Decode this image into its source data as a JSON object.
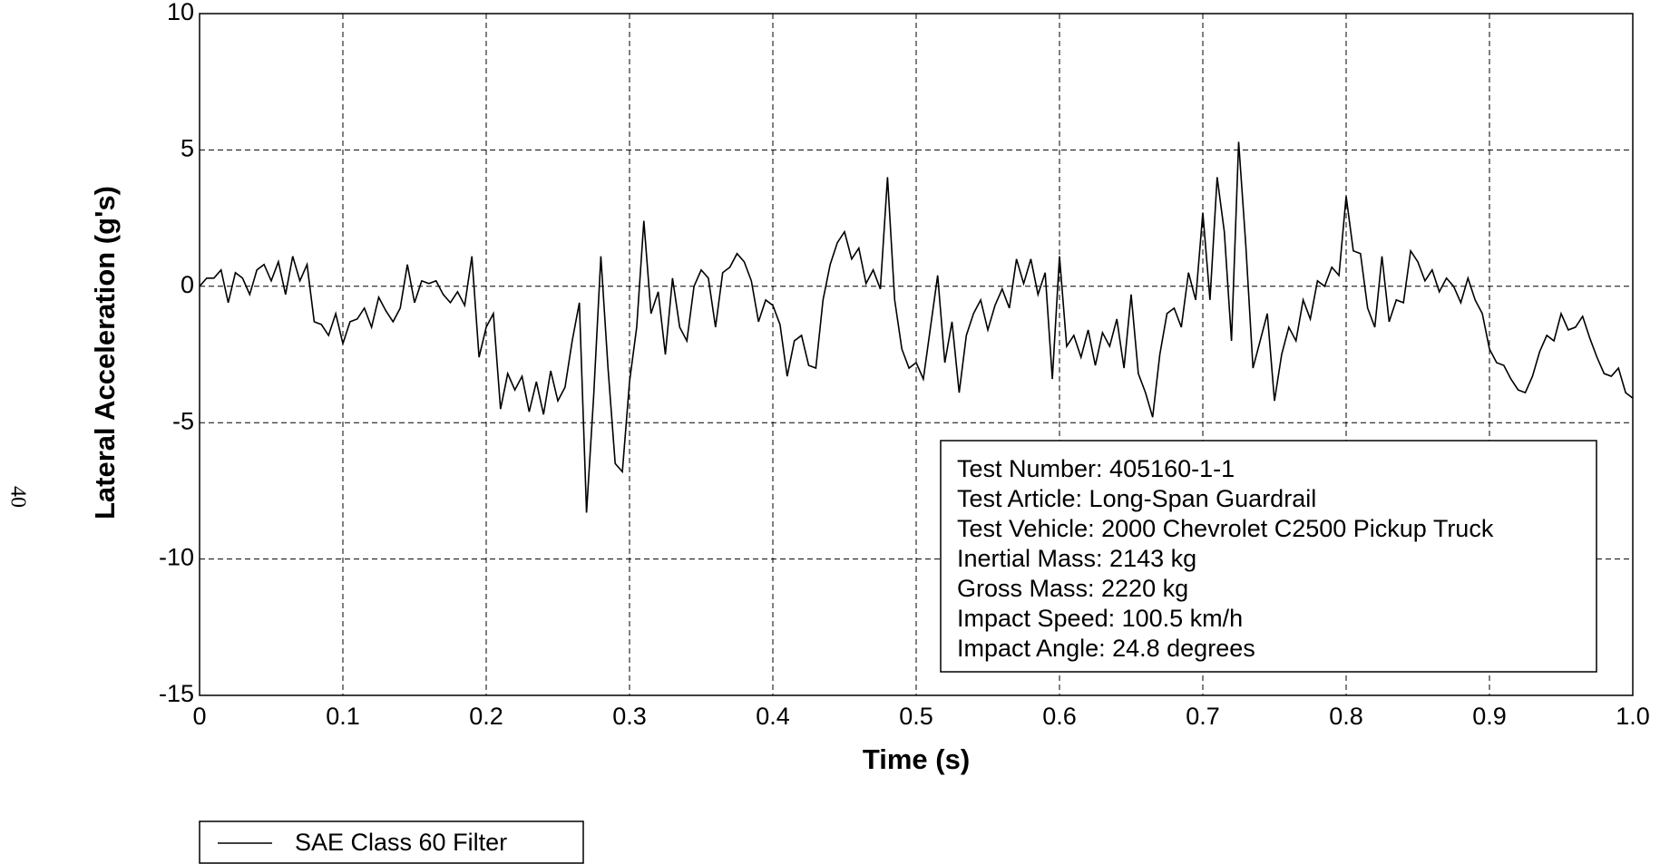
{
  "page_number": "40",
  "chart_data": {
    "type": "line",
    "x_label": "Time (s)",
    "y_label": "Lateral Acceleration (g's)",
    "xlim": [
      0,
      1
    ],
    "ylim": [
      -15,
      10
    ],
    "xticks": [
      0,
      0.1,
      0.2,
      0.3,
      0.4,
      0.5,
      0.6,
      0.7,
      0.8,
      0.9,
      {
        "value": 1,
        "label": "1.0"
      }
    ],
    "yticks": [
      -15,
      -10,
      -5,
      0,
      5,
      10
    ],
    "grid": true,
    "annotations": [
      "Test Number: 405160-1-1",
      "Test Article: Long-Span Guardrail",
      "Test Vehicle: 2000 Chevrolet C2500 Pickup Truck",
      "Inertial Mass: 2143 kg",
      "Gross Mass: 2220 kg",
      "Impact Speed: 100.5 km/h",
      "Impact Angle: 24.8 degrees"
    ],
    "x": [
      0,
      0.005,
      0.01,
      0.015,
      0.02,
      0.025,
      0.03,
      0.035,
      0.04,
      0.045,
      0.05,
      0.055,
      0.06,
      0.065,
      0.07,
      0.075,
      0.08,
      0.085,
      0.09,
      0.095,
      0.1,
      0.105,
      0.11,
      0.115,
      0.12,
      0.125,
      0.13,
      0.135,
      0.14,
      0.145,
      0.15,
      0.155,
      0.16,
      0.165,
      0.17,
      0.175,
      0.18,
      0.185,
      0.19,
      0.195,
      0.2,
      0.205,
      0.21,
      0.215,
      0.22,
      0.225,
      0.23,
      0.235,
      0.24,
      0.245,
      0.25,
      0.255,
      0.26,
      0.265,
      0.27,
      0.275,
      0.28,
      0.285,
      0.29,
      0.295,
      0.3,
      0.305,
      0.31,
      0.315,
      0.32,
      0.325,
      0.33,
      0.335,
      0.34,
      0.345,
      0.35,
      0.355,
      0.36,
      0.365,
      0.37,
      0.375,
      0.38,
      0.385,
      0.39,
      0.395,
      0.4,
      0.405,
      0.41,
      0.415,
      0.42,
      0.425,
      0.43,
      0.435,
      0.44,
      0.445,
      0.45,
      0.455,
      0.46,
      0.465,
      0.47,
      0.475,
      0.48,
      0.485,
      0.49,
      0.495,
      0.5,
      0.505,
      0.51,
      0.515,
      0.52,
      0.525,
      0.53,
      0.535,
      0.54,
      0.545,
      0.55,
      0.555,
      0.56,
      0.565,
      0.57,
      0.575,
      0.58,
      0.585,
      0.59,
      0.595,
      0.6,
      0.605,
      0.61,
      0.615,
      0.62,
      0.625,
      0.63,
      0.635,
      0.64,
      0.645,
      0.65,
      0.655,
      0.66,
      0.665,
      0.67,
      0.675,
      0.68,
      0.685,
      0.69,
      0.695,
      0.7,
      0.705,
      0.71,
      0.715,
      0.72,
      0.725,
      0.73,
      0.735,
      0.74,
      0.745,
      0.75,
      0.755,
      0.76,
      0.765,
      0.77,
      0.775,
      0.78,
      0.785,
      0.79,
      0.795,
      0.8,
      0.805,
      0.81,
      0.815,
      0.82,
      0.825,
      0.83,
      0.835,
      0.84,
      0.845,
      0.85,
      0.855,
      0.86,
      0.865,
      0.87,
      0.875,
      0.88,
      0.885,
      0.89,
      0.895,
      0.9,
      0.905,
      0.91,
      0.915,
      0.92,
      0.925,
      0.93,
      0.935,
      0.94,
      0.945,
      0.95,
      0.955,
      0.96,
      0.965,
      0.97,
      0.975,
      0.98,
      0.985,
      0.99,
      0.995,
      1
    ],
    "series": [
      {
        "name": "SAE Class 60 Filter",
        "color": "#000000",
        "values": [
          0,
          0.3,
          0.3,
          0.6,
          -0.6,
          0.5,
          0.3,
          -0.3,
          0.6,
          0.8,
          0.2,
          0.9,
          -0.3,
          1.1,
          0.2,
          0.8,
          -1.3,
          -1.4,
          -1.8,
          -1.0,
          -2.1,
          -1.3,
          -1.2,
          -0.8,
          -1.5,
          -0.4,
          -0.9,
          -1.3,
          -0.8,
          0.8,
          -0.6,
          0.2,
          0.1,
          0.2,
          -0.3,
          -0.6,
          -0.2,
          -0.7,
          1.1,
          -2.6,
          -1.5,
          -1.0,
          -4.5,
          -3.2,
          -3.8,
          -3.3,
          -4.6,
          -3.5,
          -4.7,
          -3.1,
          -4.2,
          -3.7,
          -2.0,
          -0.6,
          -8.3,
          -4.0,
          1.1,
          -3.0,
          -6.5,
          -6.8,
          -3.5,
          -1.5,
          2.4,
          -1.0,
          -0.2,
          -2.5,
          0.3,
          -1.5,
          -2.0,
          0.0,
          0.6,
          0.3,
          -1.5,
          0.5,
          0.7,
          1.2,
          0.9,
          0.2,
          -1.3,
          -0.5,
          -0.7,
          -1.4,
          -3.3,
          -2.0,
          -1.8,
          -2.9,
          -3.0,
          -0.5,
          0.8,
          1.6,
          2.0,
          1.0,
          1.4,
          0.1,
          0.6,
          -0.1,
          4.0,
          -0.5,
          -2.3,
          -3.0,
          -2.8,
          -3.4,
          -1.5,
          0.4,
          -2.8,
          -1.3,
          -3.9,
          -1.8,
          -1.0,
          -0.5,
          -1.6,
          -0.7,
          -0.1,
          -0.8,
          1.0,
          0.1,
          1.0,
          -0.3,
          0.5,
          -3.4,
          1.1,
          -2.2,
          -1.8,
          -2.6,
          -1.6,
          -2.9,
          -1.7,
          -2.2,
          -1.2,
          -3.0,
          -0.3,
          -3.2,
          -3.9,
          -4.8,
          -2.5,
          -1.0,
          -0.8,
          -1.5,
          0.5,
          -0.5,
          2.7,
          -0.5,
          4.0,
          2.0,
          -2.0,
          5.3,
          1.5,
          -3.0,
          -2.0,
          -1.0,
          -4.2,
          -2.5,
          -1.5,
          -2.0,
          -0.5,
          -1.2,
          0.2,
          0.0,
          0.7,
          0.4,
          3.3,
          1.3,
          1.2,
          -0.8,
          -1.5,
          1.1,
          -1.3,
          -0.5,
          -0.6,
          1.3,
          0.9,
          0.2,
          0.6,
          -0.2,
          0.3,
          0.0,
          -0.6,
          0.3,
          -0.5,
          -1.0,
          -2.3,
          -2.8,
          -2.9,
          -3.4,
          -3.8,
          -3.9,
          -3.3,
          -2.4,
          -1.8,
          -2.0,
          -1.0,
          -1.6,
          -1.5,
          -1.1,
          -1.9,
          -2.6,
          -3.2,
          -3.3,
          -3.0,
          -3.9,
          -4.1
        ]
      }
    ]
  }
}
